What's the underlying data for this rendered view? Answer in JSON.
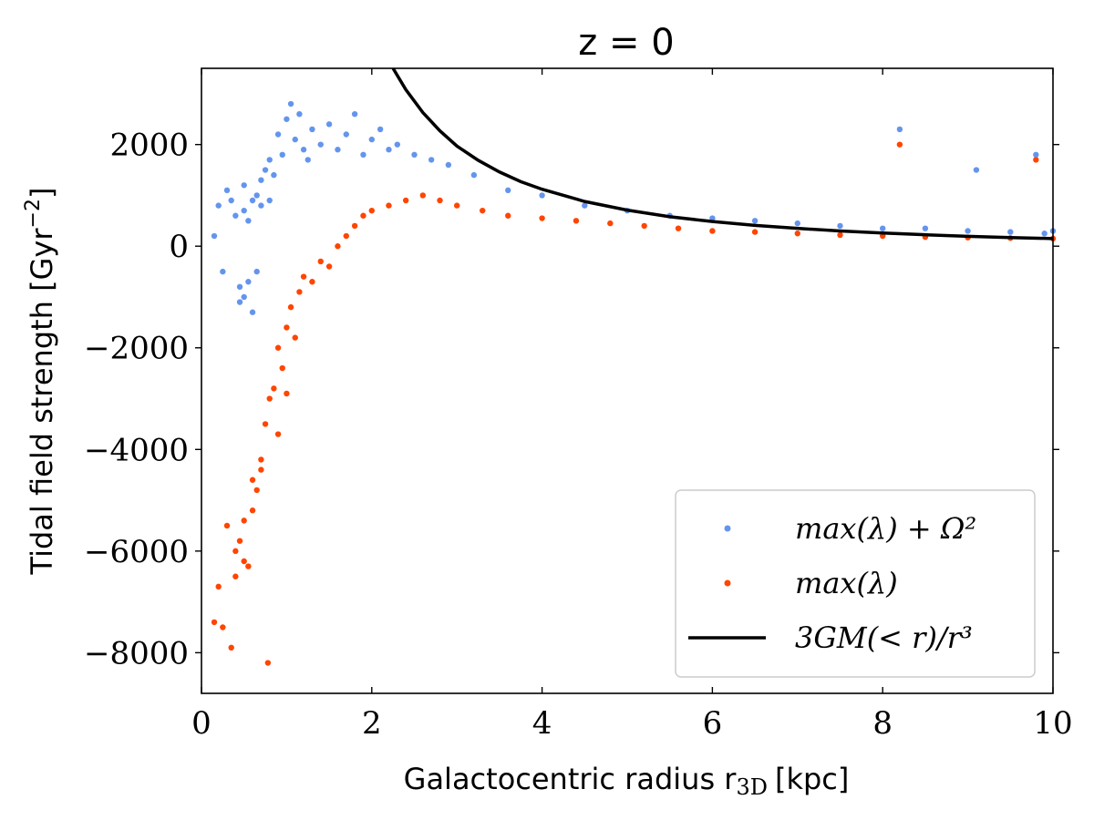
{
  "chart_data": {
    "type": "scatter",
    "title": "z = 0",
    "xlabel_main": "Galactocentric radius r",
    "xlabel_sub": "3D",
    "xlabel_unit": "[kpc]",
    "ylabel_main": "Tidal field strength [Gyr",
    "ylabel_sup": "−2",
    "ylabel_end": "]",
    "xlim": [
      0,
      10
    ],
    "ylim": [
      -8800,
      3500
    ],
    "xticks": [
      0,
      2,
      4,
      6,
      8,
      10
    ],
    "xtick_labels": [
      "0",
      "2",
      "4",
      "6",
      "8",
      "10"
    ],
    "yticks": [
      -8000,
      -6000,
      -4000,
      -2000,
      0,
      2000
    ],
    "ytick_labels": [
      "−8000",
      "−6000",
      "−4000",
      "−2000",
      "0",
      "2000"
    ],
    "grid": false,
    "legend_position": "lower-right",
    "series": [
      {
        "name": "max(λ) + Ω²",
        "kind": "scatter",
        "color": "#6495ED",
        "x": [
          0.15,
          0.2,
          0.25,
          0.3,
          0.35,
          0.4,
          0.45,
          0.5,
          0.5,
          0.55,
          0.6,
          0.6,
          0.65,
          0.7,
          0.7,
          0.75,
          0.8,
          0.8,
          0.85,
          0.9,
          0.95,
          1.0,
          1.05,
          1.1,
          1.15,
          1.2,
          1.25,
          1.3,
          1.4,
          1.5,
          1.6,
          1.7,
          1.8,
          1.9,
          2.0,
          2.1,
          2.2,
          2.3,
          2.5,
          2.7,
          2.9,
          3.2,
          3.6,
          4.0,
          4.5,
          5.0,
          5.5,
          6.0,
          6.5,
          7.0,
          7.5,
          8.0,
          8.2,
          8.5,
          9.0,
          9.1,
          9.5,
          9.8,
          9.9,
          10.0,
          0.45,
          0.55,
          0.5,
          0.65
        ],
        "y": [
          200,
          800,
          -500,
          1100,
          900,
          600,
          -800,
          700,
          1200,
          500,
          900,
          -1300,
          1000,
          800,
          1300,
          1500,
          900,
          1700,
          1400,
          2200,
          1800,
          2500,
          2800,
          2100,
          2600,
          1900,
          1700,
          2300,
          2000,
          2400,
          1900,
          2200,
          2600,
          1800,
          2100,
          2300,
          1900,
          2000,
          1800,
          1700,
          1600,
          1400,
          1100,
          1000,
          800,
          700,
          600,
          550,
          500,
          450,
          400,
          350,
          2300,
          350,
          300,
          1500,
          280,
          1800,
          250,
          300,
          -1100,
          -700,
          -1000,
          -500
        ]
      },
      {
        "name": "max(λ)",
        "kind": "scatter",
        "color": "#FF4500",
        "x": [
          0.15,
          0.2,
          0.25,
          0.3,
          0.35,
          0.4,
          0.45,
          0.5,
          0.55,
          0.6,
          0.65,
          0.7,
          0.75,
          0.78,
          0.8,
          0.85,
          0.9,
          0.95,
          1.0,
          1.05,
          1.1,
          1.15,
          1.2,
          1.3,
          1.4,
          1.5,
          1.6,
          1.7,
          1.8,
          1.9,
          2.0,
          2.2,
          2.4,
          2.6,
          2.8,
          3.0,
          3.3,
          3.6,
          4.0,
          4.4,
          4.8,
          5.2,
          5.6,
          6.0,
          6.5,
          7.0,
          7.5,
          8.0,
          8.2,
          8.5,
          9.0,
          9.5,
          9.8,
          10.0,
          0.4,
          0.5,
          0.6,
          0.7,
          0.9,
          1.0
        ],
        "y": [
          -7400,
          -6700,
          -7500,
          -5500,
          -7900,
          -6000,
          -5800,
          -5400,
          -6300,
          -5200,
          -4800,
          -4400,
          -3500,
          -8200,
          -3000,
          -2800,
          -2000,
          -2400,
          -1600,
          -1200,
          -1800,
          -900,
          -600,
          -700,
          -300,
          -400,
          0,
          200,
          400,
          600,
          700,
          800,
          900,
          1000,
          900,
          800,
          700,
          600,
          550,
          500,
          450,
          400,
          350,
          300,
          280,
          250,
          220,
          200,
          2000,
          180,
          170,
          160,
          1700,
          150,
          -6500,
          -6200,
          -4600,
          -4200,
          -3700,
          -2900
        ]
      },
      {
        "name": "3GM(< r)/r³",
        "kind": "line",
        "color": "#000000",
        "x": [
          2.25,
          2.4,
          2.6,
          2.8,
          3.0,
          3.25,
          3.5,
          3.75,
          4.0,
          4.5,
          5.0,
          5.5,
          6.0,
          6.5,
          7.0,
          7.5,
          8.0,
          8.5,
          9.0,
          9.5,
          10.0
        ],
        "y": [
          3500,
          3080,
          2630,
          2270,
          1970,
          1690,
          1460,
          1270,
          1120,
          880,
          710,
          580,
          485,
          410,
          350,
          300,
          260,
          225,
          195,
          170,
          150
        ]
      }
    ]
  }
}
